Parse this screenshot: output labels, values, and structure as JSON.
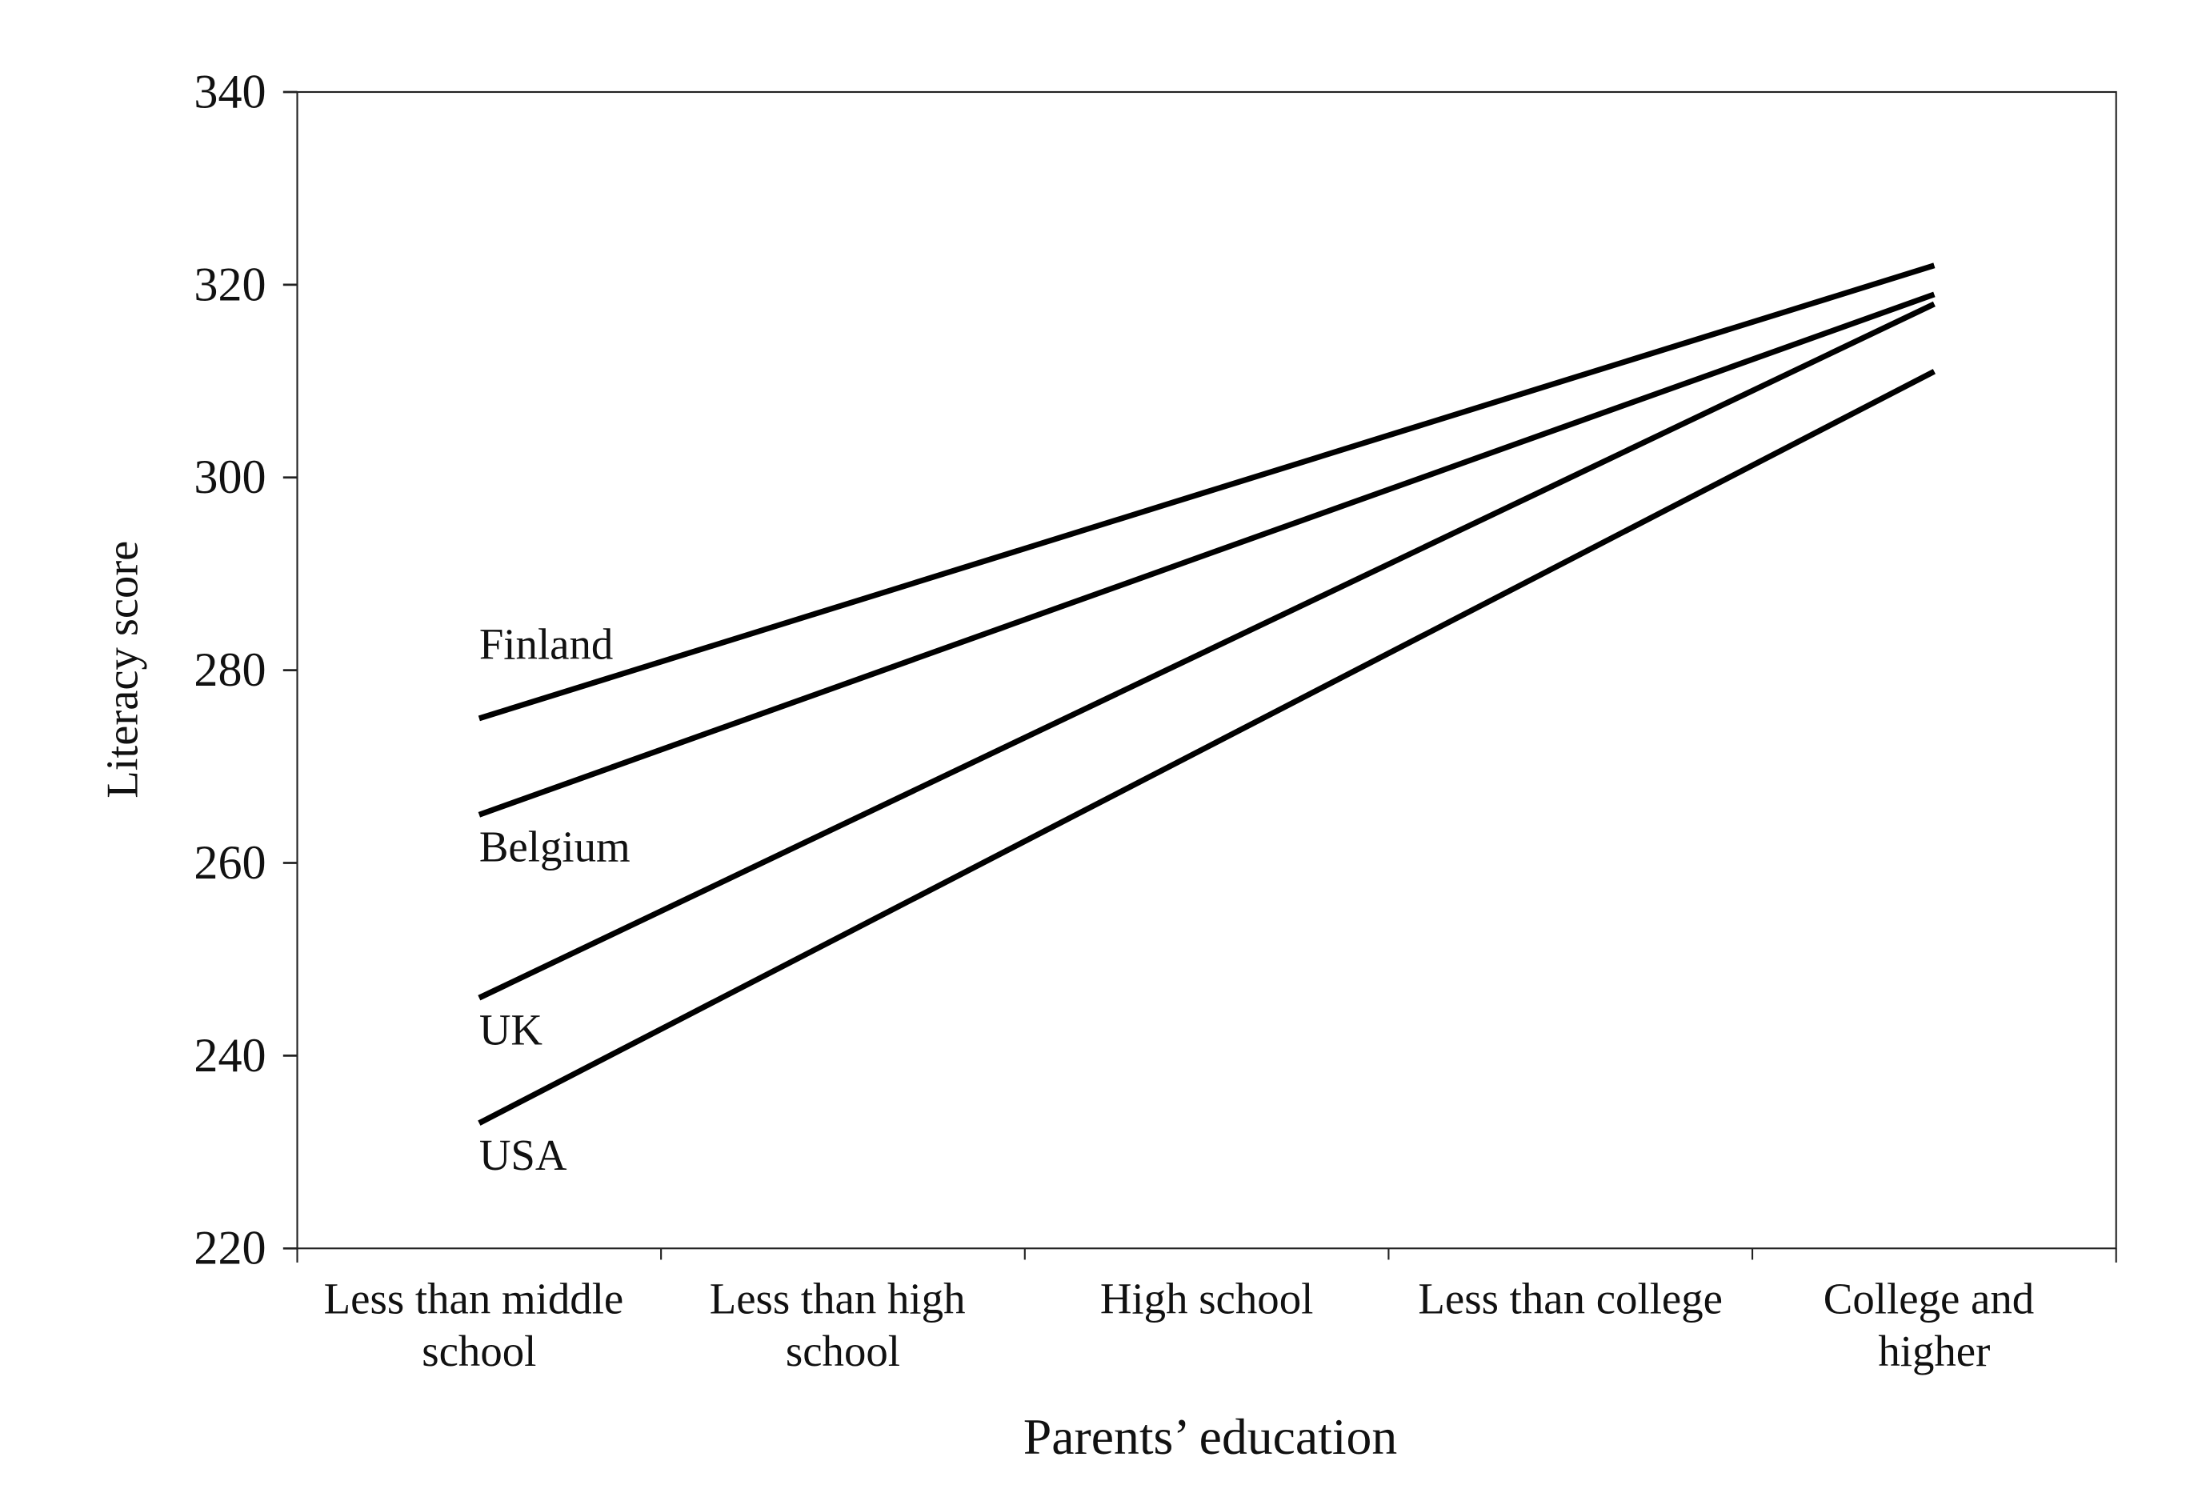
{
  "chart_data": {
    "type": "line",
    "x_label": "Parents’ education",
    "y_label": "Literacy score",
    "categories": [
      "Less than middle school",
      "Less than high school",
      "High school",
      "Less than college",
      "College and higher"
    ],
    "series": [
      {
        "name": "Finland",
        "color": "#000000",
        "values": [
          275,
          286.75,
          298.5,
          310.25,
          322
        ]
      },
      {
        "name": "Belgium",
        "color": "#000000",
        "values": [
          265,
          278.5,
          292,
          305.5,
          319
        ]
      },
      {
        "name": "UK",
        "color": "#000000",
        "values": [
          246,
          264,
          282,
          300,
          318
        ]
      },
      {
        "name": "USA",
        "color": "#000000",
        "values": [
          233,
          252.5,
          272,
          291.5,
          311
        ]
      }
    ],
    "ylim": [
      220,
      340
    ],
    "yticks": [
      220,
      240,
      260,
      280,
      300,
      320,
      340
    ]
  }
}
